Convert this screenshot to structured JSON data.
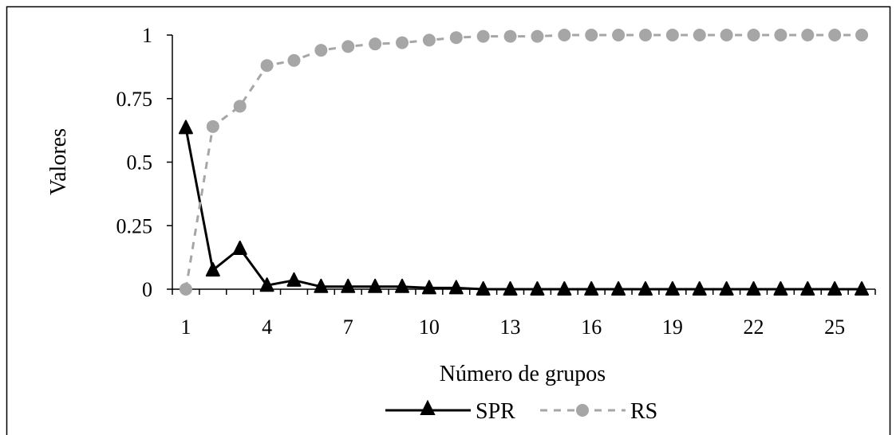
{
  "chart_data": {
    "type": "line",
    "xlabel": "Número de grupos",
    "ylabel": "Valores",
    "x": [
      1,
      2,
      3,
      4,
      5,
      6,
      7,
      8,
      9,
      10,
      11,
      12,
      13,
      14,
      15,
      16,
      17,
      18,
      19,
      20,
      21,
      22,
      23,
      24,
      25,
      26
    ],
    "x_tick_labels": [
      "1",
      "4",
      "7",
      "10",
      "13",
      "16",
      "19",
      "22",
      "25"
    ],
    "y_tick_labels": [
      "0",
      "0.25",
      "0.5",
      "0.75",
      "1"
    ],
    "ylim": [
      0,
      1
    ],
    "grid": false,
    "legend": "bottom",
    "series": [
      {
        "name": "SPR",
        "color": "#000000",
        "line_style": "solid",
        "marker": "triangle",
        "values": [
          0.635,
          0.075,
          0.16,
          0.015,
          0.035,
          0.01,
          0.01,
          0.01,
          0.01,
          0.005,
          0.005,
          0,
          0,
          0,
          0,
          0,
          0,
          0,
          0,
          0,
          0,
          0,
          0,
          0,
          0,
          0
        ]
      },
      {
        "name": "RS",
        "color": "#a6a6a6",
        "line_style": "dashed",
        "marker": "circle",
        "values": [
          0,
          0.64,
          0.72,
          0.88,
          0.9,
          0.94,
          0.955,
          0.965,
          0.97,
          0.98,
          0.99,
          0.995,
          0.995,
          0.995,
          1,
          1,
          1,
          1,
          1,
          1,
          1,
          1,
          1,
          1,
          1,
          1
        ]
      }
    ]
  }
}
